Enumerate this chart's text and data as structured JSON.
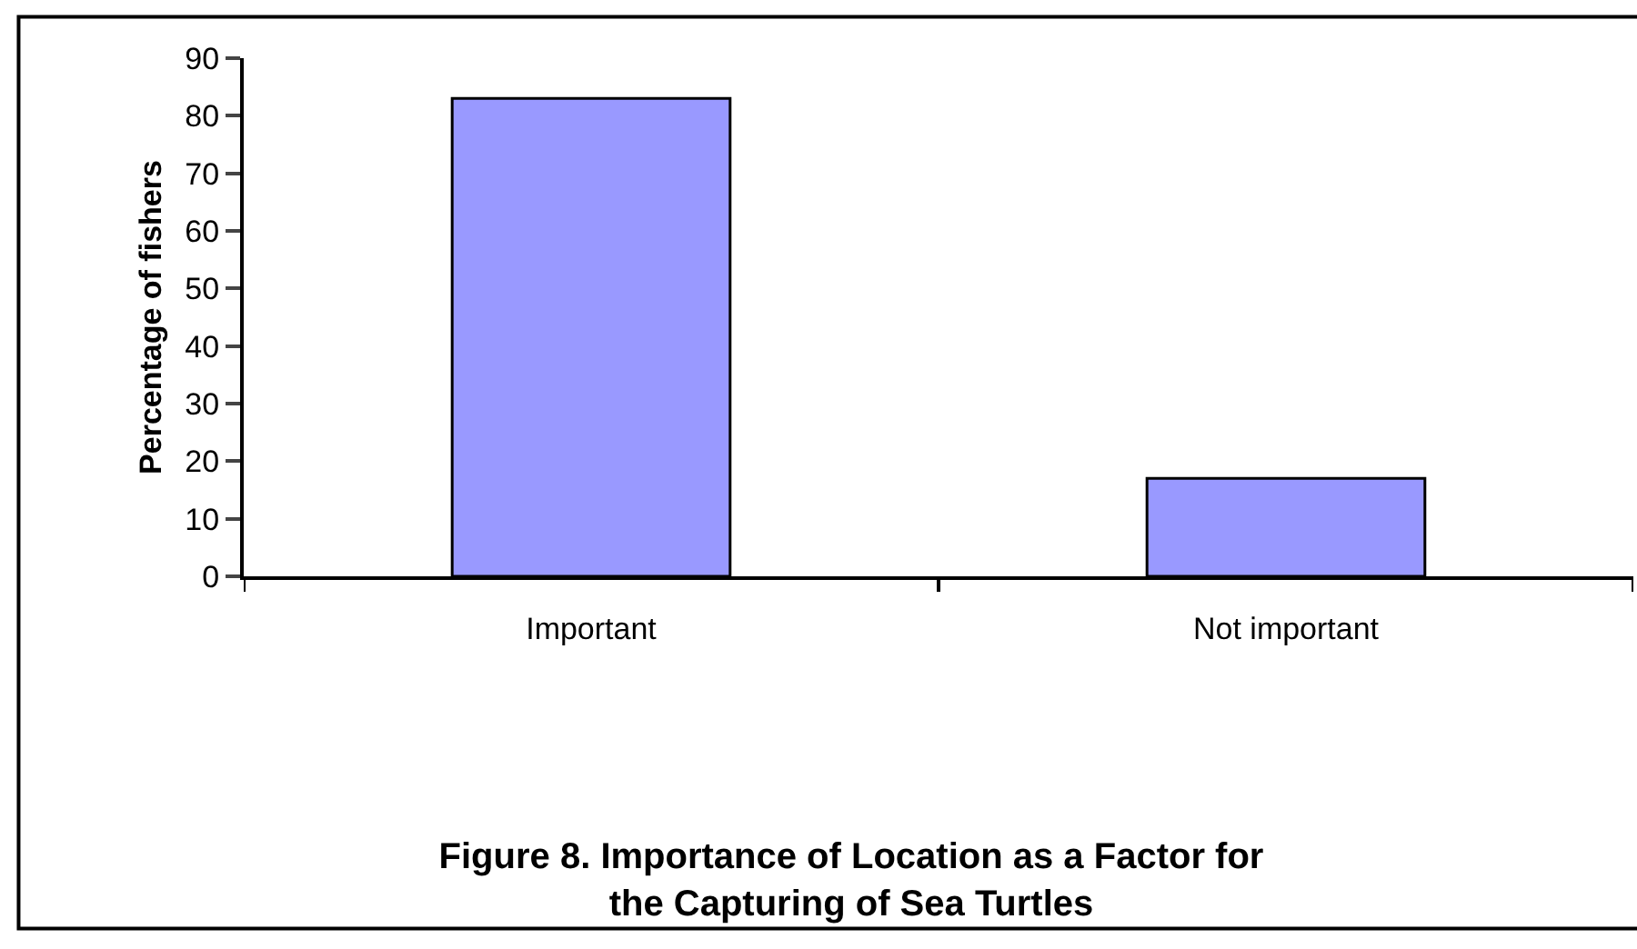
{
  "chart_data": {
    "type": "bar",
    "title": "Figure 8. Importance of Location as a Factor for\nthe Capturing of Sea Turtles",
    "ylabel": "Percentage of fishers",
    "categories": [
      "Important",
      "Not important"
    ],
    "values": [
      83,
      17
    ],
    "color": "#9999ff",
    "ylim": [
      0,
      90
    ],
    "yticks": [
      0,
      10,
      20,
      30,
      40,
      50,
      60,
      70,
      80,
      90
    ]
  }
}
